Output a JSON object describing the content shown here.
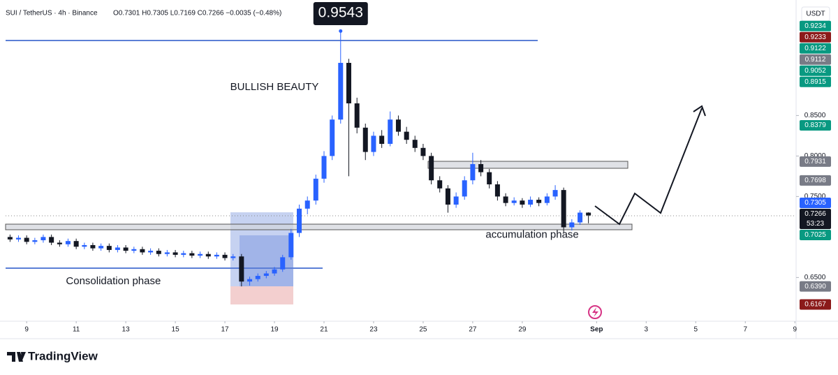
{
  "chart_data": {
    "type": "candlestick",
    "symbol": "SUI / TetherUS · 4h · Binance",
    "ohlc_legend": "O0.7301 H0.7305 L0.7169 C0.7266 −0.0035 (−0.48%)",
    "currency": "USDT",
    "brand": "TradingView",
    "annotations": [
      {
        "text": "BULLISH BEAUTY",
        "x": 19.0,
        "y": 0.885
      },
      {
        "text": "Consolidation phase",
        "x": 12.5,
        "y": 0.645
      },
      {
        "text": "accumulation phase",
        "x": 29.4,
        "y": 0.7025
      }
    ],
    "up_color": "#2962ff",
    "down_color": "#131722",
    "xlim": [
      8.15,
      40.05
    ],
    "ylim": [
      0.596,
      0.984
    ],
    "xticks": [
      9,
      11,
      13,
      15,
      17,
      19,
      21,
      23,
      25,
      27,
      29,
      {
        "value": 32,
        "label": "Sep"
      },
      {
        "value": 34,
        "label": "3"
      },
      {
        "value": 36,
        "label": "5"
      },
      {
        "value": 38,
        "label": "7"
      },
      {
        "value": 40,
        "label": "9"
      }
    ],
    "yticks": [
      {
        "value": 0.65,
        "label": "0.6500"
      },
      {
        "value": 0.75,
        "label": "0.7500"
      },
      {
        "value": 0.8,
        "label": "0.8000"
      },
      {
        "value": 0.85,
        "label": "0.8500"
      }
    ],
    "high_label": {
      "x": 21.67,
      "value": 0.9543
    },
    "price_labels": [
      {
        "value": 0.9234,
        "label": "0.9234",
        "color": "#089981"
      },
      {
        "value": 0.9233,
        "label": "0.9233",
        "color": "#8b1a1a"
      },
      {
        "value": 0.9122,
        "label": "0.9122",
        "color": "#089981"
      },
      {
        "value": 0.9112,
        "label": "0.9112",
        "color": "#787b86"
      },
      {
        "value": 0.9052,
        "label": "0.9052",
        "color": "#089981"
      },
      {
        "value": 0.8915,
        "label": "0.8915",
        "color": "#089981"
      },
      {
        "value": 0.8379,
        "label": "0.8379",
        "color": "#089981"
      },
      {
        "value": 0.7931,
        "label": "0.7931",
        "color": "#787b86"
      },
      {
        "value": 0.7698,
        "label": "0.7698",
        "color": "#787b86"
      },
      {
        "value": 0.7305,
        "label": "0.7305",
        "color": "#2962ff"
      },
      {
        "value": 0.7266,
        "label": "0.7266",
        "color": "#131722",
        "countdown": "53:23"
      },
      {
        "value": 0.7025,
        "label": "0.7025",
        "color": "#089981"
      },
      {
        "value": 0.639,
        "label": "0.6390",
        "color": "#787b86"
      },
      {
        "value": 0.6167,
        "label": "0.6167",
        "color": "#8b1a1a"
      }
    ],
    "x": [
      8.33,
      8.67,
      9.0,
      9.33,
      9.67,
      10.0,
      10.33,
      10.67,
      11.0,
      11.33,
      11.67,
      12.0,
      12.33,
      12.67,
      13.0,
      13.33,
      13.67,
      14.0,
      14.33,
      14.67,
      15.0,
      15.33,
      15.67,
      16.0,
      16.33,
      16.67,
      17.0,
      17.33,
      17.67,
      18.0,
      18.33,
      18.67,
      19.0,
      19.33,
      19.67,
      20.0,
      20.33,
      20.67,
      21.0,
      21.33,
      21.67,
      22.0,
      22.33,
      22.67,
      23.0,
      23.33,
      23.67,
      24.0,
      24.33,
      24.67,
      25.0,
      25.33,
      25.67,
      26.0,
      26.33,
      26.67,
      27.0,
      27.33,
      27.67,
      28.0,
      28.33,
      28.67,
      29.0,
      29.33,
      29.67,
      30.0,
      30.33,
      30.67,
      31.0,
      31.33,
      31.67
    ],
    "ohlc": [
      [
        0.7,
        0.703,
        0.694,
        0.697
      ],
      [
        0.697,
        0.702,
        0.694,
        0.699
      ],
      [
        0.699,
        0.702,
        0.691,
        0.694
      ],
      [
        0.694,
        0.699,
        0.691,
        0.696
      ],
      [
        0.696,
        0.703,
        0.693,
        0.7
      ],
      [
        0.7,
        0.703,
        0.69,
        0.693
      ],
      [
        0.693,
        0.696,
        0.688,
        0.691
      ],
      [
        0.691,
        0.698,
        0.688,
        0.695
      ],
      [
        0.695,
        0.698,
        0.685,
        0.688
      ],
      [
        0.688,
        0.693,
        0.685,
        0.69
      ],
      [
        0.69,
        0.693,
        0.683,
        0.686
      ],
      [
        0.686,
        0.692,
        0.683,
        0.689
      ],
      [
        0.689,
        0.692,
        0.681,
        0.684
      ],
      [
        0.684,
        0.69,
        0.681,
        0.687
      ],
      [
        0.687,
        0.69,
        0.68,
        0.683
      ],
      [
        0.683,
        0.688,
        0.68,
        0.685
      ],
      [
        0.685,
        0.688,
        0.678,
        0.681
      ],
      [
        0.681,
        0.686,
        0.678,
        0.683
      ],
      [
        0.683,
        0.686,
        0.676,
        0.679
      ],
      [
        0.679,
        0.684,
        0.676,
        0.681
      ],
      [
        0.681,
        0.684,
        0.675,
        0.678
      ],
      [
        0.678,
        0.683,
        0.675,
        0.68
      ],
      [
        0.68,
        0.683,
        0.674,
        0.677
      ],
      [
        0.677,
        0.682,
        0.674,
        0.679
      ],
      [
        0.679,
        0.682,
        0.673,
        0.676
      ],
      [
        0.676,
        0.681,
        0.673,
        0.678
      ],
      [
        0.678,
        0.681,
        0.671,
        0.674
      ],
      [
        0.674,
        0.679,
        0.671,
        0.676
      ],
      [
        0.676,
        0.679,
        0.639,
        0.645
      ],
      [
        0.645,
        0.651,
        0.64,
        0.648
      ],
      [
        0.648,
        0.655,
        0.645,
        0.652
      ],
      [
        0.652,
        0.658,
        0.649,
        0.655
      ],
      [
        0.655,
        0.663,
        0.652,
        0.66
      ],
      [
        0.66,
        0.678,
        0.657,
        0.675
      ],
      [
        0.675,
        0.71,
        0.672,
        0.705
      ],
      [
        0.705,
        0.74,
        0.7,
        0.735
      ],
      [
        0.735,
        0.75,
        0.728,
        0.745
      ],
      [
        0.745,
        0.777,
        0.74,
        0.772
      ],
      [
        0.772,
        0.806,
        0.767,
        0.8
      ],
      [
        0.8,
        0.85,
        0.795,
        0.845
      ],
      [
        0.845,
        0.9543,
        0.84,
        0.915
      ],
      [
        0.915,
        0.92,
        0.775,
        0.865
      ],
      [
        0.865,
        0.872,
        0.828,
        0.835
      ],
      [
        0.835,
        0.84,
        0.795,
        0.805
      ],
      [
        0.805,
        0.83,
        0.8,
        0.825
      ],
      [
        0.825,
        0.832,
        0.81,
        0.815
      ],
      [
        0.815,
        0.855,
        0.812,
        0.845
      ],
      [
        0.845,
        0.85,
        0.825,
        0.83
      ],
      [
        0.83,
        0.836,
        0.815,
        0.82
      ],
      [
        0.82,
        0.825,
        0.805,
        0.81
      ],
      [
        0.81,
        0.815,
        0.795,
        0.8
      ],
      [
        0.8,
        0.804,
        0.765,
        0.77
      ],
      [
        0.77,
        0.775,
        0.755,
        0.76
      ],
      [
        0.76,
        0.764,
        0.73,
        0.74
      ],
      [
        0.74,
        0.755,
        0.736,
        0.75
      ],
      [
        0.75,
        0.775,
        0.746,
        0.77
      ],
      [
        0.77,
        0.804,
        0.765,
        0.79
      ],
      [
        0.79,
        0.795,
        0.775,
        0.78
      ],
      [
        0.78,
        0.784,
        0.76,
        0.765
      ],
      [
        0.765,
        0.769,
        0.745,
        0.75
      ],
      [
        0.75,
        0.754,
        0.738,
        0.742
      ],
      [
        0.742,
        0.749,
        0.739,
        0.745
      ],
      [
        0.745,
        0.748,
        0.736,
        0.74
      ],
      [
        0.74,
        0.75,
        0.737,
        0.746
      ],
      [
        0.746,
        0.749,
        0.738,
        0.742
      ],
      [
        0.742,
        0.754,
        0.739,
        0.75
      ],
      [
        0.75,
        0.764,
        0.746,
        0.758
      ],
      [
        0.758,
        0.761,
        0.705,
        0.712
      ],
      [
        0.712,
        0.722,
        0.708,
        0.718
      ],
      [
        0.718,
        0.733,
        0.715,
        0.7301
      ],
      [
        0.7301,
        0.7305,
        0.7169,
        0.7266
      ]
    ]
  }
}
